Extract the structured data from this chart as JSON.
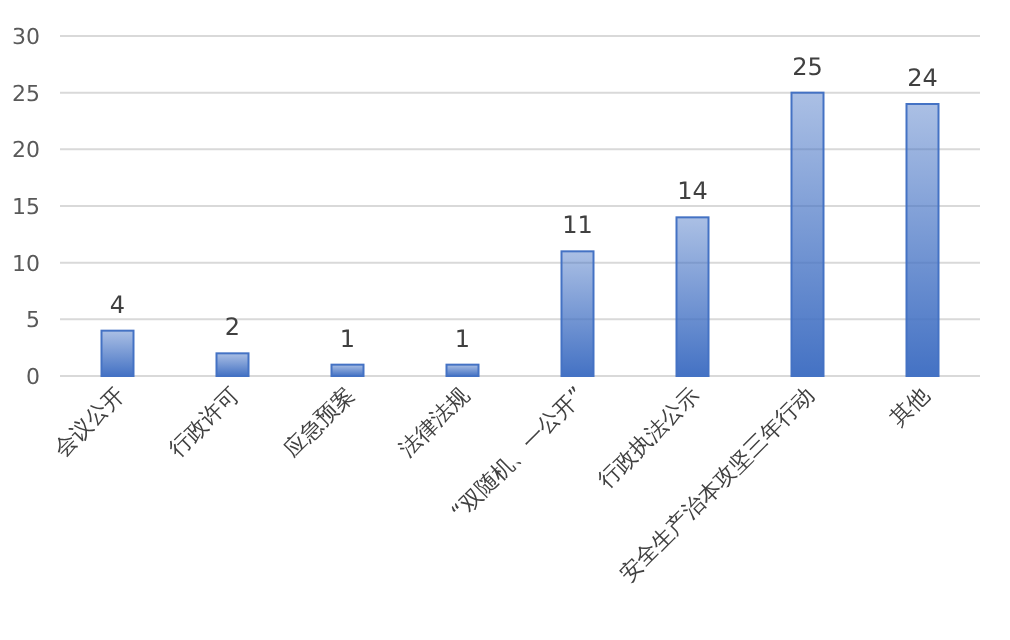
{
  "chart_data": {
    "type": "bar",
    "categories": [
      "会议公开",
      "行政许可",
      "应急预案",
      "法律法规",
      "“双随机、一公开”",
      "行政执法公示",
      "安全生产治本攻坚三年行动",
      "其他"
    ],
    "values": [
      4,
      2,
      1,
      1,
      11,
      14,
      25,
      24
    ],
    "color": "#4472c4",
    "ylim": [
      0,
      30
    ],
    "yticks": [
      0,
      5,
      10,
      15,
      20,
      25,
      30
    ],
    "grid": "y",
    "data_labels": true
  }
}
